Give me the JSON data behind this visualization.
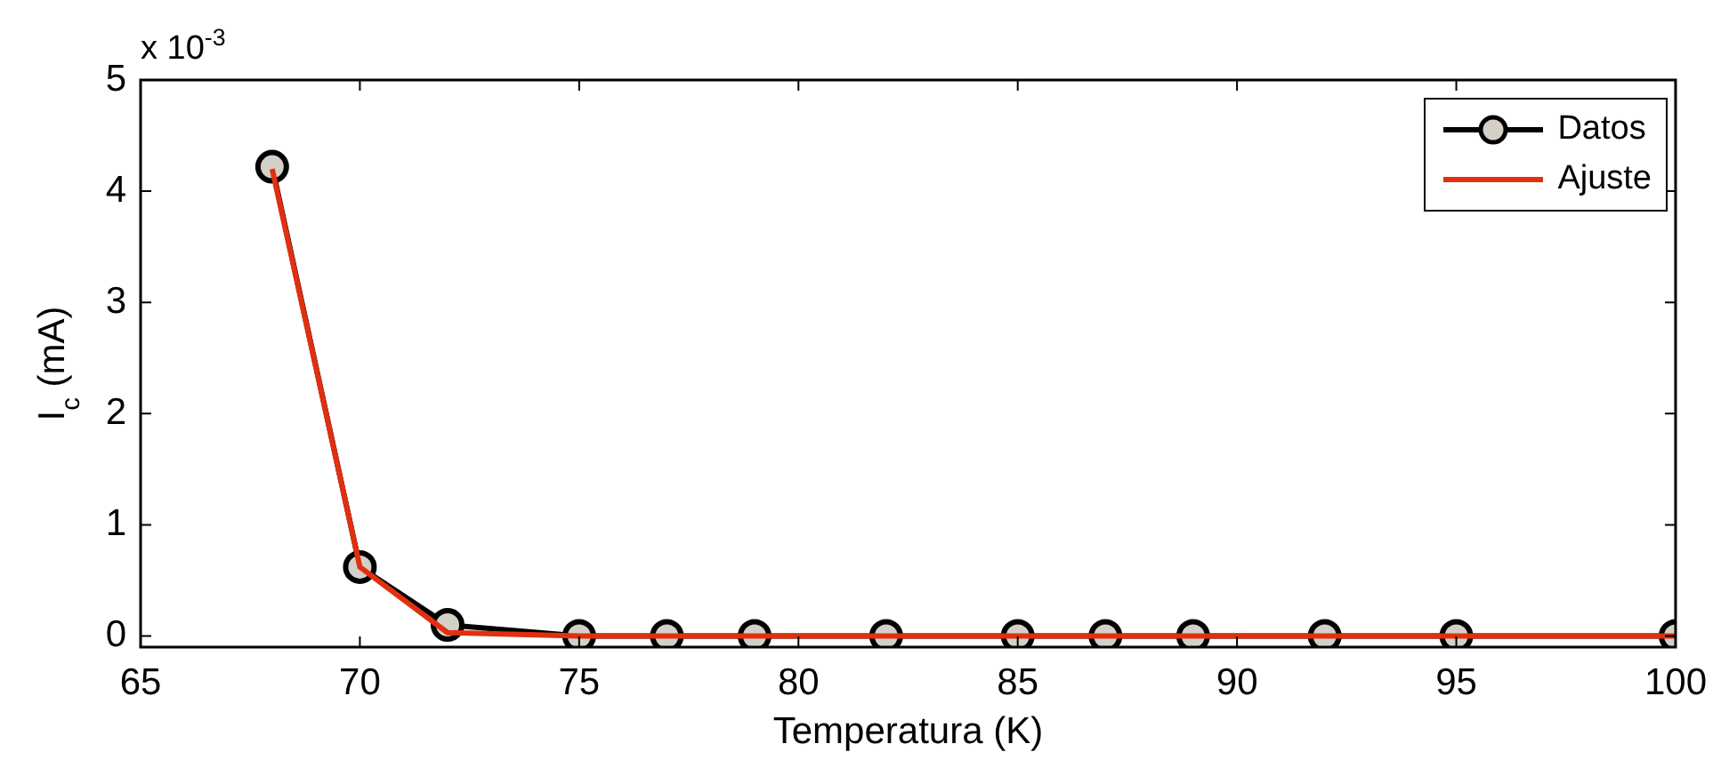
{
  "chart_data": {
    "type": "line",
    "xlabel": "Temperatura (K)",
    "ylabel": "I$_{c}$ (mA)",
    "annotations": [
      "x 10$^{-3}$"
    ],
    "x": [
      68,
      70,
      72,
      75,
      77,
      79,
      82,
      85,
      87,
      89,
      92,
      95,
      100
    ],
    "series": [
      {
        "name": "Datos",
        "color": "#000000",
        "marker": "circle",
        "values": [
          4.22,
          0.62,
          0.1,
          0,
          0,
          0,
          0,
          0,
          0,
          0,
          0,
          0,
          0
        ]
      },
      {
        "name": "Ajuste",
        "color": "#e03010",
        "marker": "none",
        "values": [
          4.2,
          0.62,
          0.03,
          0,
          0,
          0,
          0,
          0,
          0,
          0,
          0,
          0,
          0
        ]
      }
    ],
    "xlim": [
      65,
      100
    ],
    "xticks": [
      65,
      70,
      75,
      80,
      85,
      90,
      95,
      100
    ],
    "ylim": [
      -0.1,
      5
    ],
    "yticks": [
      0,
      1,
      2,
      3,
      4,
      5
    ],
    "grid": false,
    "legend": "top right",
    "line_style": "solid"
  }
}
